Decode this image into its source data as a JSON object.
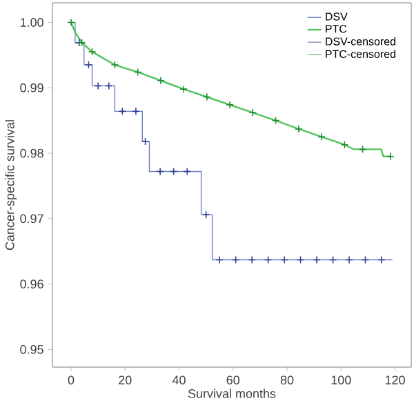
{
  "chart_data": {
    "type": "line",
    "xlabel": "Survival months",
    "ylabel": "Cancer-specific survival",
    "xlim": [
      -6.9,
      126
    ],
    "ylim": [
      0.9473,
      1.003
    ],
    "xticks": [
      0,
      20,
      40,
      60,
      80,
      100,
      120
    ],
    "yticks": [
      0.95,
      0.96,
      0.97,
      0.98,
      0.99,
      {
        "value": 1.0,
        "label": "1.00"
      }
    ],
    "legend": "top right",
    "grid": false,
    "series": [
      {
        "name": "DSV",
        "type": "step",
        "color": "#7080c4",
        "x": [
          0,
          1.5,
          4.8,
          7.8,
          16.2,
          26.4,
          29.0,
          48.2,
          52.3,
          119
        ],
        "values": [
          1.0,
          0.9969,
          0.9935,
          0.9903,
          0.9864,
          0.9818,
          0.9772,
          0.9706,
          0.9637,
          0.9637
        ]
      },
      {
        "name": "PTC",
        "color": "#52c45e",
        "x": [
          0,
          1.5,
          4,
          7.8,
          16.2,
          24.7,
          33.2,
          41.7,
          50.3,
          58.8,
          67.3,
          75.8,
          84.3,
          92.8,
          101.3,
          104.7,
          114.9,
          115.7,
          118.3
        ],
        "values": [
          1.0,
          0.9985,
          0.9969,
          0.9955,
          0.9935,
          0.9924,
          0.9911,
          0.9898,
          0.9886,
          0.9874,
          0.9862,
          0.985,
          0.9837,
          0.9825,
          0.9813,
          0.9806,
          0.9806,
          0.9795,
          0.9795
        ]
      },
      {
        "name": "DSV-censored",
        "type": "scatter",
        "marker": "cross",
        "color": "#2e3f94",
        "x": [
          3,
          6.5,
          10,
          14,
          19,
          24,
          27.5,
          33,
          38,
          43,
          50,
          55,
          61,
          67,
          73,
          79,
          85,
          91,
          97,
          103,
          109,
          115
        ],
        "values": [
          0.9969,
          0.9935,
          0.9903,
          0.9903,
          0.9864,
          0.9864,
          0.9818,
          0.9772,
          0.9772,
          0.9772,
          0.9706,
          0.9637,
          0.9637,
          0.9637,
          0.9637,
          0.9637,
          0.9637,
          0.9637,
          0.9637,
          0.9637,
          0.9637,
          0.9637
        ]
      },
      {
        "name": "PTC-censored",
        "type": "scatter",
        "marker": "cross",
        "color": "#1f8a2e",
        "x": [
          0,
          4,
          7.8,
          16.2,
          24.7,
          33.2,
          41.7,
          50.3,
          58.8,
          67.3,
          75.8,
          84.3,
          92.8,
          101.3,
          108,
          118.3
        ],
        "values": [
          1.0,
          0.9969,
          0.9955,
          0.9935,
          0.9924,
          0.9911,
          0.9898,
          0.9886,
          0.9874,
          0.9862,
          0.985,
          0.9837,
          0.9825,
          0.9813,
          0.9806,
          0.9795
        ]
      }
    ]
  }
}
